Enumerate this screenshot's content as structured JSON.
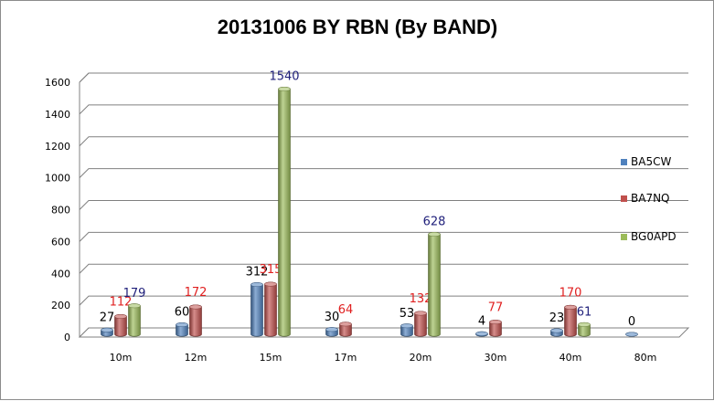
{
  "chart_data": {
    "type": "bar",
    "title": "20131006 BY RBN (By BAND)",
    "xlabel": "",
    "ylabel": "",
    "categories": [
      "10m",
      "12m",
      "15m",
      "17m",
      "20m",
      "30m",
      "40m",
      "80m"
    ],
    "ylim": [
      0,
      1600
    ],
    "yticks": [
      0,
      200,
      400,
      600,
      800,
      1000,
      1200,
      1400,
      1600
    ],
    "grid": true,
    "legend_position": "right",
    "series": [
      {
        "name": "BA5CW",
        "color": "#4f81bd",
        "label_color": "#000000",
        "values": [
          27,
          60,
          312,
          30,
          53,
          4,
          23,
          0
        ]
      },
      {
        "name": "BA7NQ",
        "color": "#c0504d",
        "label_color": "#e02020",
        "values": [
          112,
          172,
          315,
          64,
          132,
          77,
          170,
          null
        ]
      },
      {
        "name": "BG0APD",
        "color": "#9bbb59",
        "label_color": "#1f1f7a",
        "values": [
          179,
          null,
          1540,
          null,
          628,
          null,
          61,
          null
        ]
      }
    ]
  }
}
